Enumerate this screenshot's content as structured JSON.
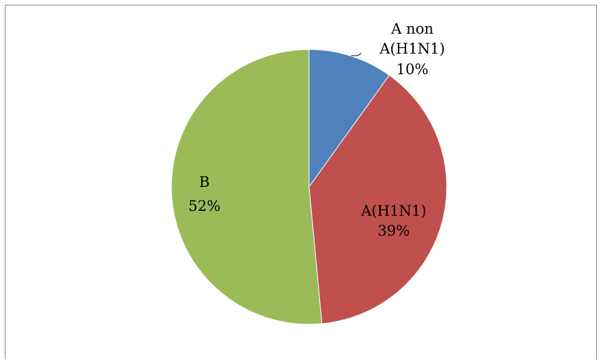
{
  "chart_data": {
    "type": "pie",
    "slices": [
      {
        "label_lines": [
          "A non",
          "A(H1N1)"
        ],
        "percent_label": "10%",
        "value": 10,
        "color": "#4F81BD"
      },
      {
        "label_lines": [
          "A(H1N1)"
        ],
        "percent_label": "39%",
        "value": 39,
        "color": "#C0504D"
      },
      {
        "label_lines": [
          "B"
        ],
        "percent_label": "52%",
        "value": 52,
        "color": "#9BBB59"
      }
    ],
    "legend": "none"
  }
}
